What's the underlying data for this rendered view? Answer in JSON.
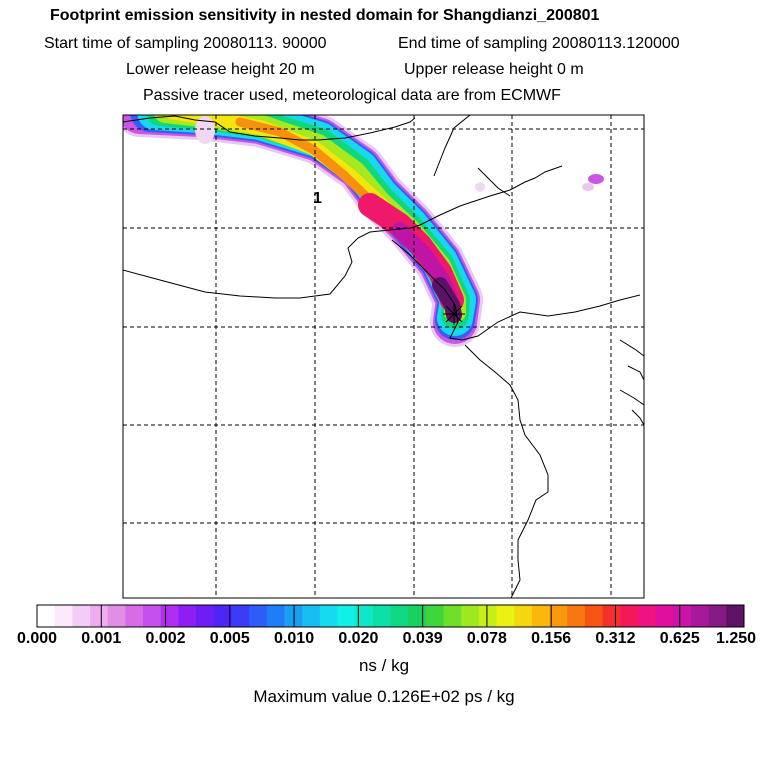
{
  "header": {
    "title": "Footprint emission sensitivity in nested domain for Shangdianzi_200801",
    "start_label": "Start time of sampling 20080113. 90000",
    "end_label": "End time of sampling 20080113.120000",
    "lower_label": "Lower release height   20 m",
    "upper_label": "Upper release height    0 m",
    "tracer_label": "Passive tracer used, meteorological data are from ECMWF"
  },
  "map": {
    "point_label": "1"
  },
  "colorbar": {
    "tick_labels": [
      "0.000",
      "0.001",
      "0.002",
      "0.005",
      "0.010",
      "0.020",
      "0.039",
      "0.078",
      "0.156",
      "0.312",
      "0.625",
      "1.250"
    ],
    "colors": [
      "#ffffff",
      "#fbe8fb",
      "#f5ccf5",
      "#eeadee",
      "#e38ee6",
      "#d86ce6",
      "#c650ea",
      "#b02ef0",
      "#8d1ff2",
      "#6c1ef5",
      "#4d26f7",
      "#3a3af7",
      "#2d5cf7",
      "#1f7ef5",
      "#1a9ef2",
      "#17bdf0",
      "#14dbee",
      "#10f0e8",
      "#0fe8c8",
      "#0de0a6",
      "#10d884",
      "#1ad060",
      "#3dd63a",
      "#6ee02a",
      "#9ee820",
      "#c8ee18",
      "#ecf20f",
      "#f6d60c",
      "#f8b80c",
      "#f8980e",
      "#f77611",
      "#f65414",
      "#f52e2e",
      "#f2185a",
      "#ee1282",
      "#e0109e",
      "#c814a8",
      "#a8189a",
      "#861a86",
      "#5e1266"
    ],
    "units": "ns / kg"
  },
  "footer": {
    "max_value": "Maximum value  0.126E+02 ps / kg"
  }
}
